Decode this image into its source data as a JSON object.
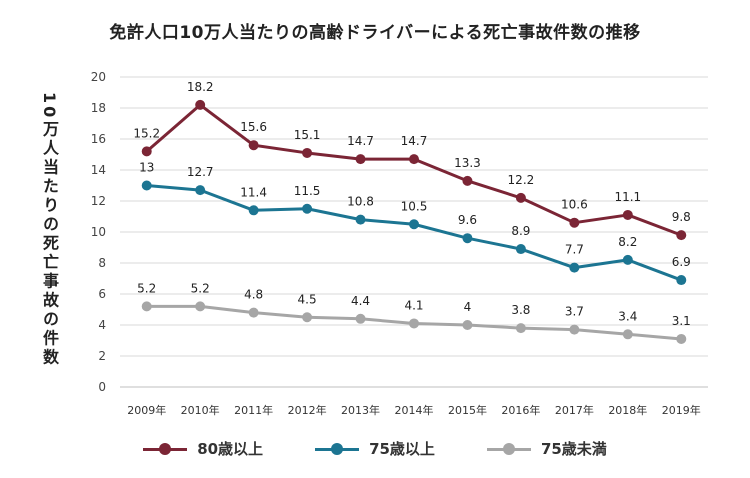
{
  "chart_data": {
    "type": "line",
    "title": "免許人口10万人当たりの高齢ドライバーによる死亡事故件数の推移",
    "ylabel": "10万人当たりの死亡事故の件数",
    "xlabel": "",
    "categories": [
      "2009年",
      "2010年",
      "2011年",
      "2012年",
      "2013年",
      "2014年",
      "2015年",
      "2016年",
      "2017年",
      "2018年",
      "2019年"
    ],
    "ylim": [
      0,
      20
    ],
    "yticks": [
      0,
      2,
      4,
      6,
      8,
      10,
      12,
      14,
      16,
      18,
      20
    ],
    "grid": true,
    "legend_position": "bottom",
    "series": [
      {
        "name": "80歳以上",
        "color": "#7b2535",
        "values": [
          15.2,
          18.2,
          15.6,
          15.1,
          14.7,
          14.7,
          13.3,
          12.2,
          10.6,
          11.1,
          9.8
        ],
        "labels": [
          "15.2",
          "18.2",
          "15.6",
          "15.1",
          "14.7",
          "14.7",
          "13.3",
          "12.2",
          "10.6",
          "11.1",
          "9.8"
        ]
      },
      {
        "name": "75歳以上",
        "color": "#1c7592",
        "values": [
          13,
          12.7,
          11.4,
          11.5,
          10.8,
          10.5,
          9.6,
          8.9,
          7.7,
          8.2,
          6.9
        ],
        "labels": [
          "13",
          "12.7",
          "11.4",
          "11.5",
          "10.8",
          "10.5",
          "9.6",
          "8.9",
          "7.7",
          "8.2",
          "6.9"
        ]
      },
      {
        "name": "75歳未満",
        "color": "#a6a6a6",
        "values": [
          5.2,
          5.2,
          4.8,
          4.5,
          4.4,
          4.1,
          4,
          3.8,
          3.7,
          3.4,
          3.1
        ],
        "labels": [
          "5.2",
          "5.2",
          "4.8",
          "4.5",
          "4.4",
          "4.1",
          "4",
          "3.8",
          "3.7",
          "3.4",
          "3.1"
        ]
      }
    ]
  }
}
